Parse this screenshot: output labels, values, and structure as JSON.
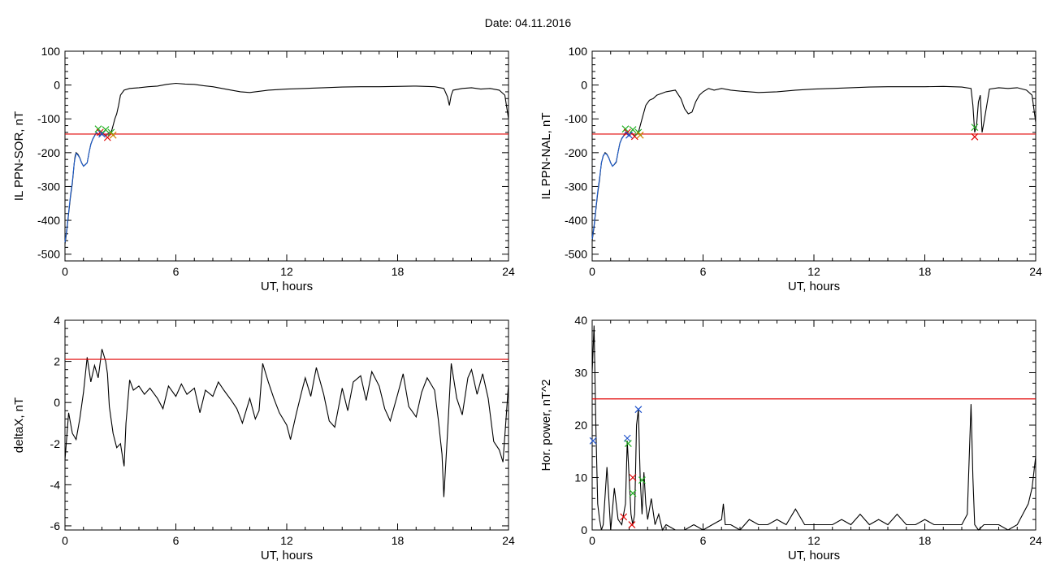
{
  "header": {
    "title": "Date:  04.11.2016"
  },
  "chart_data": [
    {
      "id": "p1",
      "type": "line",
      "xlabel": "UT, hours",
      "ylabel": "IL PPN-SOR, nT",
      "xlim": [
        0,
        24
      ],
      "ylim": [
        -520,
        100
      ],
      "xticks": [
        0,
        6,
        12,
        18,
        24
      ],
      "yticks": [
        -500,
        -400,
        -300,
        -200,
        -100,
        0,
        100
      ],
      "threshold": {
        "value": -145,
        "color": "#e00000"
      },
      "series": [
        {
          "color": "#000000",
          "x": [
            0,
            0.1,
            0.2,
            0.3,
            0.4,
            0.5,
            0.55,
            0.6,
            0.7,
            0.8,
            0.9,
            1.0,
            1.1,
            1.2,
            1.3,
            1.4,
            1.5,
            1.6,
            1.7,
            1.8,
            1.9,
            2.0,
            2.1,
            2.2,
            2.3,
            2.4,
            2.5,
            2.6,
            2.7,
            2.8,
            2.9,
            3.0,
            3.2,
            3.5,
            4.0,
            4.5,
            5.0,
            5.5,
            6.0,
            6.5,
            7.0,
            7.5,
            8.0,
            8.5,
            9.0,
            9.5,
            10.0,
            11.0,
            12.0,
            13.0,
            14.0,
            15.0,
            16.0,
            17.0,
            18.0,
            19.0,
            20.0,
            20.5,
            20.7,
            20.8,
            20.9,
            21.0,
            21.5,
            22.0,
            22.5,
            23.0,
            23.5,
            23.8,
            24.0
          ],
          "y": [
            -470,
            -430,
            -380,
            -330,
            -290,
            -230,
            -210,
            -200,
            -205,
            -215,
            -230,
            -240,
            -235,
            -230,
            -200,
            -175,
            -160,
            -150,
            -140,
            -145,
            -150,
            -140,
            -145,
            -150,
            -145,
            -140,
            -140,
            -120,
            -100,
            -85,
            -60,
            -30,
            -15,
            -10,
            -8,
            -5,
            -3,
            2,
            5,
            3,
            2,
            -2,
            -5,
            -10,
            -15,
            -20,
            -22,
            -15,
            -12,
            -10,
            -8,
            -6,
            -5,
            -5,
            -4,
            -3,
            -5,
            -10,
            -35,
            -60,
            -30,
            -15,
            -10,
            -8,
            -12,
            -10,
            -15,
            -30,
            -100
          ]
        },
        {
          "color": "#1f5fd0",
          "x": [
            0,
            0.1,
            0.2,
            0.3,
            0.4,
            0.5,
            0.6,
            0.7,
            0.8,
            0.9,
            1.0,
            1.1,
            1.2,
            1.3,
            1.4,
            1.5,
            1.6,
            1.7,
            1.8,
            1.9,
            2.0,
            2.1,
            2.2,
            2.3,
            2.4,
            2.5
          ],
          "y": [
            -465,
            -425,
            -375,
            -325,
            -285,
            -230,
            -202,
            -207,
            -216,
            -231,
            -240,
            -236,
            -230,
            -200,
            -176,
            -161,
            -151,
            -141,
            -146,
            -151,
            -141,
            -146,
            -151,
            -146,
            -141,
            -141
          ]
        }
      ],
      "markers": [
        {
          "x": 1.8,
          "y": -130,
          "color": "#22b022"
        },
        {
          "x": 1.9,
          "y": -140,
          "color": "#e00000"
        },
        {
          "x": 2.0,
          "y": -145,
          "color": "#2255cc"
        },
        {
          "x": 2.2,
          "y": -132,
          "color": "#22b022"
        },
        {
          "x": 2.3,
          "y": -155,
          "color": "#e00000"
        },
        {
          "x": 2.5,
          "y": -140,
          "color": "#22b022"
        },
        {
          "x": 2.6,
          "y": -148,
          "color": "#d08000"
        }
      ]
    },
    {
      "id": "p2",
      "type": "line",
      "xlabel": "UT, hours",
      "ylabel": "IL PPN-NAL, nT",
      "xlim": [
        0,
        24
      ],
      "ylim": [
        -520,
        100
      ],
      "xticks": [
        0,
        6,
        12,
        18,
        24
      ],
      "yticks": [
        -500,
        -400,
        -300,
        -200,
        -100,
        0,
        100
      ],
      "threshold": {
        "value": -145,
        "color": "#e00000"
      },
      "series": [
        {
          "color": "#000000",
          "x": [
            0,
            0.1,
            0.2,
            0.3,
            0.4,
            0.5,
            0.6,
            0.7,
            0.8,
            0.9,
            1.0,
            1.1,
            1.2,
            1.3,
            1.4,
            1.5,
            1.6,
            1.7,
            1.8,
            1.9,
            2.0,
            2.1,
            2.2,
            2.3,
            2.4,
            2.5,
            2.7,
            2.9,
            3.1,
            3.3,
            3.5,
            4.0,
            4.5,
            4.8,
            5.0,
            5.2,
            5.4,
            5.6,
            5.8,
            6.0,
            6.3,
            6.6,
            7.0,
            7.5,
            8.0,
            9.0,
            10.0,
            11.0,
            12.0,
            13.0,
            14.0,
            15.0,
            16.0,
            17.0,
            18.0,
            19.0,
            20.0,
            20.5,
            20.6,
            20.7,
            20.8,
            20.9,
            21.0,
            21.1,
            21.2,
            21.5,
            22.0,
            22.5,
            23.0,
            23.5,
            23.8,
            24.0
          ],
          "y": [
            -460,
            -420,
            -370,
            -320,
            -280,
            -230,
            -210,
            -200,
            -205,
            -215,
            -230,
            -240,
            -235,
            -228,
            -198,
            -172,
            -158,
            -150,
            -140,
            -145,
            -150,
            -140,
            -145,
            -150,
            -145,
            -140,
            -100,
            -60,
            -45,
            -40,
            -30,
            -20,
            -15,
            -40,
            -70,
            -85,
            -80,
            -50,
            -30,
            -20,
            -10,
            -15,
            -10,
            -15,
            -18,
            -22,
            -20,
            -15,
            -12,
            -10,
            -8,
            -6,
            -5,
            -5,
            -5,
            -4,
            -6,
            -10,
            -60,
            -140,
            -120,
            -50,
            -30,
            -140,
            -110,
            -12,
            -8,
            -10,
            -8,
            -15,
            -30,
            -110
          ]
        },
        {
          "color": "#1f5fd0",
          "x": [
            0,
            0.1,
            0.2,
            0.3,
            0.4,
            0.5,
            0.6,
            0.7,
            0.8,
            0.9,
            1.0,
            1.1,
            1.2,
            1.3,
            1.4,
            1.5,
            1.6,
            1.7,
            1.8,
            1.9,
            2.0,
            2.1,
            2.2,
            2.3,
            2.4,
            2.5
          ],
          "y": [
            -455,
            -415,
            -365,
            -315,
            -275,
            -230,
            -208,
            -202,
            -206,
            -216,
            -231,
            -240,
            -234,
            -226,
            -198,
            -173,
            -159,
            -151,
            -141,
            -146,
            -151,
            -141,
            -146,
            -151,
            -146,
            -141
          ]
        }
      ],
      "markers": [
        {
          "x": 1.8,
          "y": -130,
          "color": "#22b022"
        },
        {
          "x": 1.9,
          "y": -140,
          "color": "#e00000"
        },
        {
          "x": 2.0,
          "y": -148,
          "color": "#2255cc"
        },
        {
          "x": 2.2,
          "y": -132,
          "color": "#22b022"
        },
        {
          "x": 2.3,
          "y": -152,
          "color": "#e00000"
        },
        {
          "x": 2.5,
          "y": -140,
          "color": "#22b022"
        },
        {
          "x": 2.6,
          "y": -148,
          "color": "#d08000"
        },
        {
          "x": 20.7,
          "y": -125,
          "color": "#22b022"
        },
        {
          "x": 20.7,
          "y": -153,
          "color": "#e00000"
        }
      ]
    },
    {
      "id": "p3",
      "type": "line",
      "xlabel": "UT, hours",
      "ylabel": "deltaX, nT",
      "xlim": [
        0,
        24
      ],
      "ylim": [
        -6.2,
        4
      ],
      "xticks": [
        0,
        6,
        12,
        18,
        24
      ],
      "yticks": [
        -6,
        -4,
        -2,
        0,
        2,
        4
      ],
      "threshold": {
        "value": 2.1,
        "color": "#e00000"
      },
      "series": [
        {
          "color": "#000000",
          "x": [
            0,
            0.2,
            0.4,
            0.6,
            0.8,
            1.0,
            1.2,
            1.4,
            1.6,
            1.8,
            2.0,
            2.2,
            2.3,
            2.4,
            2.6,
            2.8,
            3.0,
            3.2,
            3.3,
            3.5,
            3.7,
            4.0,
            4.3,
            4.6,
            5.0,
            5.3,
            5.6,
            6.0,
            6.3,
            6.6,
            7.0,
            7.3,
            7.6,
            8.0,
            8.3,
            8.6,
            9.0,
            9.3,
            9.6,
            10.0,
            10.3,
            10.5,
            10.7,
            11.0,
            11.3,
            11.6,
            12.0,
            12.2,
            12.5,
            12.8,
            13.0,
            13.3,
            13.6,
            14.0,
            14.3,
            14.6,
            15.0,
            15.3,
            15.6,
            16.0,
            16.3,
            16.6,
            17.0,
            17.3,
            17.6,
            18.0,
            18.3,
            18.6,
            19.0,
            19.3,
            19.6,
            20.0,
            20.2,
            20.4,
            20.5,
            20.7,
            20.9,
            21.2,
            21.5,
            21.8,
            22.0,
            22.3,
            22.6,
            22.9,
            23.2,
            23.5,
            23.7,
            24.0
          ],
          "y": [
            -2.8,
            -0.5,
            -1.5,
            -1.8,
            -0.8,
            0.5,
            2.2,
            1.0,
            1.8,
            1.2,
            2.6,
            2.0,
            1.4,
            -0.2,
            -1.5,
            -2.2,
            -2.0,
            -3.1,
            -1.0,
            1.1,
            0.6,
            0.8,
            0.4,
            0.7,
            0.2,
            -0.3,
            0.8,
            0.3,
            0.9,
            0.4,
            0.7,
            -0.5,
            0.6,
            0.3,
            1.0,
            0.6,
            0.1,
            -0.3,
            -1.0,
            0.2,
            -0.8,
            -0.4,
            1.9,
            1.0,
            0.2,
            -0.5,
            -1.1,
            -1.8,
            -0.6,
            0.5,
            1.2,
            0.3,
            1.7,
            0.4,
            -0.9,
            -1.2,
            0.7,
            -0.4,
            1.0,
            1.3,
            0.1,
            1.5,
            0.8,
            -0.3,
            -0.9,
            0.4,
            1.4,
            -0.2,
            -0.7,
            0.5,
            1.2,
            0.6,
            -0.8,
            -2.5,
            -4.6,
            -1.5,
            1.9,
            0.2,
            -0.6,
            1.2,
            1.6,
            0.4,
            1.4,
            0.2,
            -1.9,
            -2.3,
            -2.9,
            0.9
          ]
        }
      ],
      "markers": []
    },
    {
      "id": "p4",
      "type": "line",
      "xlabel": "UT, hours",
      "ylabel": "Hor. power, nT^2",
      "xlim": [
        0,
        24
      ],
      "ylim": [
        0,
        40
      ],
      "xticks": [
        0,
        6,
        12,
        18,
        24
      ],
      "yticks": [
        0,
        10,
        20,
        30,
        40
      ],
      "threshold": {
        "value": 25,
        "color": "#e00000"
      },
      "series": [
        {
          "color": "#000000",
          "x": [
            0,
            0.1,
            0.2,
            0.3,
            0.4,
            0.5,
            0.6,
            0.8,
            1.0,
            1.2,
            1.4,
            1.6,
            1.8,
            1.9,
            2.0,
            2.1,
            2.2,
            2.3,
            2.4,
            2.5,
            2.6,
            2.7,
            2.8,
            2.9,
            3.0,
            3.2,
            3.4,
            3.6,
            3.8,
            4.0,
            4.5,
            5.0,
            5.5,
            6.0,
            6.5,
            7.0,
            7.1,
            7.2,
            7.5,
            8.0,
            8.5,
            9.0,
            9.5,
            10.0,
            10.5,
            11.0,
            11.5,
            12.0,
            12.5,
            13.0,
            13.5,
            14.0,
            14.5,
            15.0,
            15.5,
            16.0,
            16.5,
            17.0,
            17.5,
            18.0,
            18.5,
            19.0,
            19.5,
            20.0,
            20.3,
            20.5,
            20.6,
            20.7,
            20.9,
            21.2,
            21.5,
            22.0,
            22.5,
            23.0,
            23.3,
            23.6,
            23.8,
            24.0
          ],
          "y": [
            30,
            39,
            20,
            5,
            2,
            0,
            1,
            12,
            0,
            8,
            2,
            1,
            5,
            17,
            10,
            3,
            1,
            3,
            20,
            23,
            10,
            3,
            11,
            5,
            2,
            6,
            1,
            3,
            0,
            1,
            0,
            0,
            1,
            0,
            1,
            2,
            5,
            1,
            1,
            0,
            2,
            1,
            1,
            2,
            1,
            4,
            1,
            1,
            1,
            1,
            2,
            1,
            3,
            1,
            2,
            1,
            3,
            1,
            1,
            2,
            1,
            1,
            1,
            1,
            3,
            24,
            10,
            1,
            0,
            1,
            1,
            1,
            0,
            1,
            3,
            5,
            8,
            14
          ]
        }
      ],
      "markers": [
        {
          "x": 0.05,
          "y": 17,
          "color": "#2255cc"
        },
        {
          "x": 1.7,
          "y": 2.5,
          "color": "#e00000"
        },
        {
          "x": 1.9,
          "y": 17.5,
          "color": "#2255cc"
        },
        {
          "x": 1.95,
          "y": 16.5,
          "color": "#22b022"
        },
        {
          "x": 2.2,
          "y": 10,
          "color": "#e00000"
        },
        {
          "x": 2.2,
          "y": 7,
          "color": "#22b022"
        },
        {
          "x": 2.15,
          "y": 1,
          "color": "#e00000"
        },
        {
          "x": 2.5,
          "y": 23,
          "color": "#2255cc"
        },
        {
          "x": 2.7,
          "y": 9.5,
          "color": "#22b022"
        }
      ]
    }
  ]
}
